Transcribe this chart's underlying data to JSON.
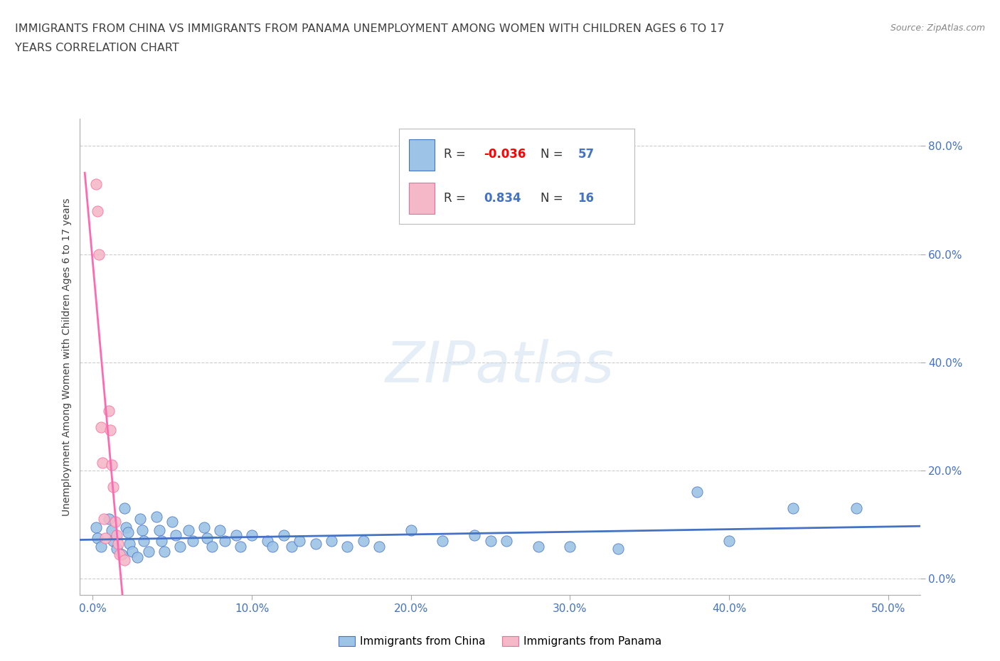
{
  "title_line1": "IMMIGRANTS FROM CHINA VS IMMIGRANTS FROM PANAMA UNEMPLOYMENT AMONG WOMEN WITH CHILDREN AGES 6 TO 17",
  "title_line2": "YEARS CORRELATION CHART",
  "source": "Source: ZipAtlas.com",
  "ylabel": "Unemployment Among Women with Children Ages 6 to 17 years",
  "xlabel_ticks": [
    "0.0%",
    "10.0%",
    "20.0%",
    "30.0%",
    "40.0%",
    "50.0%"
  ],
  "ylabel_ticks": [
    "0.0%",
    "20.0%",
    "40.0%",
    "60.0%",
    "80.0%"
  ],
  "x_tick_vals": [
    0.0,
    0.1,
    0.2,
    0.3,
    0.4,
    0.5
  ],
  "y_tick_vals": [
    0.0,
    0.2,
    0.4,
    0.6,
    0.8
  ],
  "xlim": [
    -0.008,
    0.52
  ],
  "ylim": [
    -0.03,
    0.85
  ],
  "china_color": "#9DC3E6",
  "panama_color": "#F4B8C8",
  "china_edge_color": "#4472C4",
  "panama_edge_color": "#FF6699",
  "china_line_color": "#4472C4",
  "panama_line_color": "#FF69B4",
  "R_china": -0.036,
  "N_china": 57,
  "R_panama": 0.834,
  "N_panama": 16,
  "watermark": "ZIPatlas",
  "legend_label_china": "Immigrants from China",
  "legend_label_panama": "Immigrants from Panama",
  "china_scatter_x": [
    0.002,
    0.003,
    0.005,
    0.01,
    0.012,
    0.013,
    0.015,
    0.018,
    0.02,
    0.021,
    0.022,
    0.023,
    0.025,
    0.028,
    0.03,
    0.031,
    0.032,
    0.035,
    0.04,
    0.042,
    0.043,
    0.045,
    0.05,
    0.052,
    0.055,
    0.06,
    0.063,
    0.07,
    0.072,
    0.075,
    0.08,
    0.083,
    0.09,
    0.093,
    0.1,
    0.11,
    0.113,
    0.12,
    0.125,
    0.13,
    0.14,
    0.15,
    0.16,
    0.17,
    0.18,
    0.2,
    0.22,
    0.24,
    0.25,
    0.26,
    0.28,
    0.3,
    0.33,
    0.38,
    0.4,
    0.44,
    0.48
  ],
  "china_scatter_y": [
    0.095,
    0.075,
    0.06,
    0.11,
    0.09,
    0.07,
    0.055,
    0.045,
    0.13,
    0.095,
    0.085,
    0.065,
    0.05,
    0.04,
    0.11,
    0.09,
    0.07,
    0.05,
    0.115,
    0.09,
    0.07,
    0.05,
    0.105,
    0.08,
    0.06,
    0.09,
    0.07,
    0.095,
    0.075,
    0.06,
    0.09,
    0.07,
    0.08,
    0.06,
    0.08,
    0.07,
    0.06,
    0.08,
    0.06,
    0.07,
    0.065,
    0.07,
    0.06,
    0.07,
    0.06,
    0.09,
    0.07,
    0.08,
    0.07,
    0.07,
    0.06,
    0.06,
    0.055,
    0.16,
    0.07,
    0.13,
    0.13
  ],
  "panama_scatter_x": [
    0.002,
    0.003,
    0.004,
    0.005,
    0.006,
    0.007,
    0.008,
    0.01,
    0.011,
    0.012,
    0.013,
    0.014,
    0.015,
    0.016,
    0.017,
    0.02
  ],
  "panama_scatter_y": [
    0.73,
    0.68,
    0.6,
    0.28,
    0.215,
    0.11,
    0.075,
    0.31,
    0.275,
    0.21,
    0.17,
    0.105,
    0.08,
    0.065,
    0.045,
    0.035
  ],
  "grid_color": "#CCCCCC",
  "bg_color": "#FFFFFF",
  "label_color": "#4472C4",
  "text_color": "#404040",
  "r_neg_color": "#FF0000",
  "r_pos_color": "#4472C4"
}
